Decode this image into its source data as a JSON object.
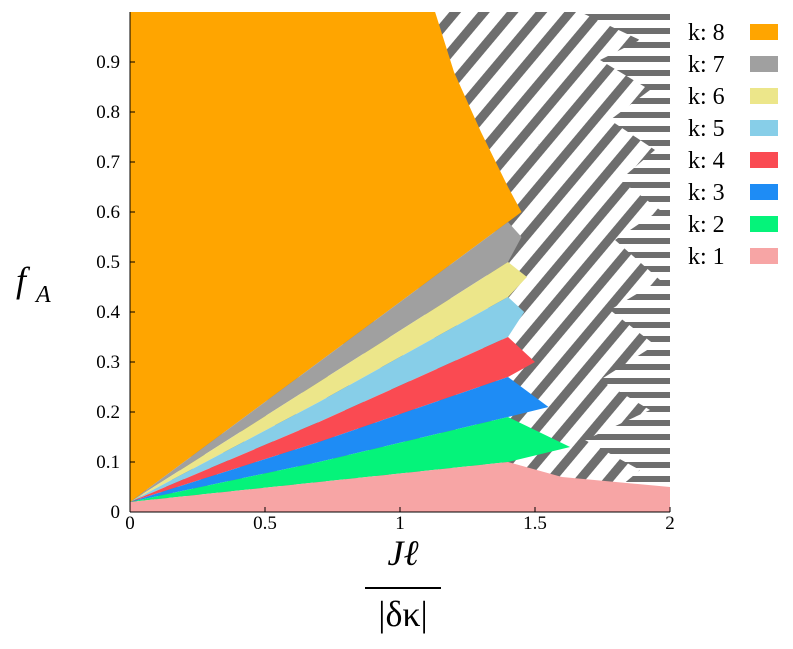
{
  "chart_data": {
    "type": "area",
    "xlabel": {
      "numerator": "Jℓ",
      "denominator": "|δκ|"
    },
    "ylabel": {
      "symbol": "f",
      "subscript": "A"
    },
    "xlim": [
      0,
      2
    ],
    "ylim": [
      0,
      1
    ],
    "xticks": [
      0,
      0.5,
      1,
      1.5,
      2
    ],
    "yticks": [
      0,
      0.1,
      0.2,
      0.3,
      0.4,
      0.5,
      0.6,
      0.7,
      0.8,
      0.9
    ],
    "legend": "right",
    "series": [
      {
        "name": "k: 8",
        "color": "#ffa500",
        "x": [
          0,
          0,
          1.13,
          1.2,
          1.3,
          1.4,
          1.45,
          1.4,
          0.7,
          0
        ],
        "y": [
          0.02,
          1,
          1,
          0.88,
          0.76,
          0.65,
          0.6,
          0.58,
          0.3,
          0.02
        ]
      },
      {
        "name": "k: 7",
        "color": "#a0a0a0",
        "x": [
          0,
          0.7,
          1.4,
          1.45,
          1.4,
          0.7,
          0
        ],
        "y": [
          0.02,
          0.3,
          0.58,
          0.55,
          0.5,
          0.26,
          0.02
        ]
      },
      {
        "name": "k: 6",
        "color": "#ece68a",
        "x": [
          0,
          0.7,
          1.4,
          1.47,
          1.4,
          0.7,
          0
        ],
        "y": [
          0.02,
          0.26,
          0.5,
          0.47,
          0.43,
          0.22,
          0.02
        ]
      },
      {
        "name": "k: 5",
        "color": "#87cee8",
        "x": [
          0,
          0.7,
          1.4,
          1.46,
          1.4,
          0.7,
          0
        ],
        "y": [
          0.02,
          0.22,
          0.43,
          0.4,
          0.35,
          0.18,
          0.02
        ]
      },
      {
        "name": "k: 4",
        "color": "#fa4a52",
        "x": [
          0,
          0.7,
          1.4,
          1.5,
          1.4,
          0.7,
          0
        ],
        "y": [
          0.02,
          0.18,
          0.35,
          0.3,
          0.27,
          0.14,
          0.02
        ]
      },
      {
        "name": "k: 3",
        "color": "#1e8cf5",
        "x": [
          0,
          0.7,
          1.4,
          1.55,
          1.4,
          0.7,
          0
        ],
        "y": [
          0.02,
          0.14,
          0.27,
          0.21,
          0.19,
          0.1,
          0.02
        ]
      },
      {
        "name": "k: 2",
        "color": "#05f37a",
        "x": [
          0,
          0.7,
          1.4,
          1.63,
          1.4,
          0.7,
          0
        ],
        "y": [
          0.02,
          0.1,
          0.19,
          0.13,
          0.1,
          0.06,
          0.02
        ]
      },
      {
        "name": "k: 1",
        "color": "#f7a5a5",
        "x": [
          0,
          0,
          0.7,
          1.4,
          1.6,
          2,
          2
        ],
        "y": [
          0,
          0.02,
          0.06,
          0.1,
          0.07,
          0.05,
          0
        ]
      }
    ]
  }
}
